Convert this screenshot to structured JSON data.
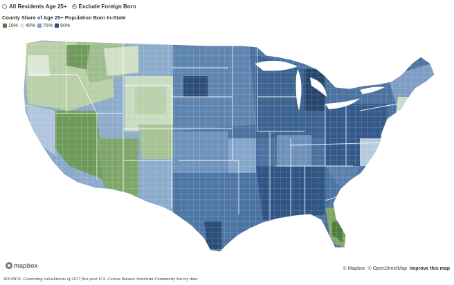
{
  "controls": {
    "options": [
      {
        "label": "All Residents Age 25+",
        "checked": false
      },
      {
        "label": "Exclude Foreign Born",
        "checked": true
      }
    ]
  },
  "map_title": "County Share of Age 25+ Population Born In-State",
  "legend": [
    {
      "label": "10%",
      "color": "#4e7e3e"
    },
    {
      "label": "45%",
      "color": "#dfe8d9"
    },
    {
      "label": "75%",
      "color": "#7f9fc4"
    },
    {
      "label": "90%",
      "color": "#2c4e76"
    }
  ],
  "attribution": {
    "mapbox": "© Mapbox",
    "osm": "© OpenStreetMap",
    "improve": "Improve this map"
  },
  "logo_text": "mapbox",
  "source": "SOURCE: Governing calculations of 2017 five-year U.S. Census Bureau American Community Survey data"
}
